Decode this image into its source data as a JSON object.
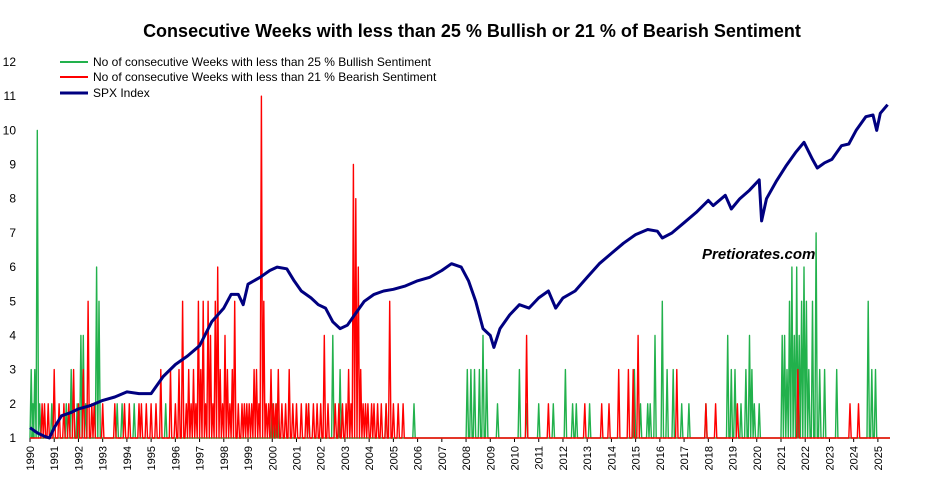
{
  "chart_data": {
    "type": "line",
    "title": "Consecutive Weeks with less than 25 %  Bullish or 21 %  of Bearish Sentiment",
    "watermark": "Pretiorates.com",
    "xlabel": "",
    "ylabel": "",
    "ylim": [
      1,
      12
    ],
    "yticks": [
      1,
      2,
      3,
      4,
      5,
      6,
      7,
      8,
      9,
      10,
      11,
      12
    ],
    "xlim": [
      1990,
      2025.5
    ],
    "xticks": [
      "1990",
      "1991",
      "1992",
      "1993",
      "1994",
      "1995",
      "1996",
      "1997",
      "1998",
      "1999",
      "2000",
      "2001",
      "2002",
      "2003",
      "2004",
      "2005",
      "2006",
      "2007",
      "2008",
      "2009",
      "2010",
      "2011",
      "2012",
      "2013",
      "2014",
      "2015",
      "2016",
      "2017",
      "2018",
      "2019",
      "2020",
      "2021",
      "2022",
      "2023",
      "2024",
      "2025"
    ],
    "legend_position": "top-left",
    "series": [
      {
        "name": "No of consecutive Weeks with less than 25 % Bullish Sentiment",
        "color": "#22b14c",
        "style": "spikes",
        "points": [
          [
            1990.05,
            3
          ],
          [
            1990.12,
            2
          ],
          [
            1990.2,
            3
          ],
          [
            1990.3,
            10
          ],
          [
            1990.4,
            2
          ],
          [
            1990.9,
            2
          ],
          [
            1991.5,
            2
          ],
          [
            1991.7,
            3
          ],
          [
            1991.95,
            2
          ],
          [
            1992.1,
            4
          ],
          [
            1992.2,
            4
          ],
          [
            1992.3,
            2
          ],
          [
            1992.75,
            6
          ],
          [
            1992.85,
            5
          ],
          [
            1993.6,
            2
          ],
          [
            1993.8,
            2
          ],
          [
            1994.3,
            2
          ],
          [
            1995.6,
            2
          ],
          [
            2000.0,
            2
          ],
          [
            2000.2,
            2
          ],
          [
            2001.5,
            2
          ],
          [
            2002.5,
            4
          ],
          [
            2002.8,
            3
          ],
          [
            2004.7,
            2
          ],
          [
            2005.85,
            2
          ],
          [
            2008.05,
            3
          ],
          [
            2008.2,
            3
          ],
          [
            2008.35,
            3
          ],
          [
            2008.55,
            3
          ],
          [
            2008.7,
            4
          ],
          [
            2008.85,
            3
          ],
          [
            2009.3,
            2
          ],
          [
            2010.2,
            3
          ],
          [
            2010.5,
            2
          ],
          [
            2011.0,
            2
          ],
          [
            2011.6,
            2
          ],
          [
            2012.1,
            3
          ],
          [
            2012.4,
            2
          ],
          [
            2012.55,
            2
          ],
          [
            2013.1,
            2
          ],
          [
            2014.95,
            3
          ],
          [
            2015.2,
            2
          ],
          [
            2015.5,
            2
          ],
          [
            2015.6,
            2
          ],
          [
            2015.8,
            4
          ],
          [
            2016.1,
            5
          ],
          [
            2016.3,
            3
          ],
          [
            2016.55,
            3
          ],
          [
            2016.9,
            2
          ],
          [
            2017.2,
            2
          ],
          [
            2017.9,
            2
          ],
          [
            2018.8,
            4
          ],
          [
            2018.95,
            3
          ],
          [
            2019.1,
            3
          ],
          [
            2019.35,
            2
          ],
          [
            2019.55,
            3
          ],
          [
            2019.7,
            4
          ],
          [
            2019.8,
            3
          ],
          [
            2019.9,
            2
          ],
          [
            2020.1,
            2
          ],
          [
            2021.05,
            4
          ],
          [
            2021.15,
            4
          ],
          [
            2021.25,
            3
          ],
          [
            2021.35,
            5
          ],
          [
            2021.45,
            6
          ],
          [
            2021.55,
            4
          ],
          [
            2021.65,
            6
          ],
          [
            2021.75,
            4
          ],
          [
            2021.85,
            5
          ],
          [
            2021.95,
            6
          ],
          [
            2022.05,
            5
          ],
          [
            2022.15,
            3
          ],
          [
            2022.3,
            5
          ],
          [
            2022.45,
            7
          ],
          [
            2022.6,
            3
          ],
          [
            2022.8,
            3
          ],
          [
            2023.3,
            3
          ],
          [
            2024.6,
            5
          ],
          [
            2024.75,
            3
          ],
          [
            2024.9,
            3
          ]
        ]
      },
      {
        "name": "No of consecutive Weeks with less than 21 % Bearish Sentiment",
        "color": "#ff0000",
        "style": "spikes",
        "points": [
          [
            1990.5,
            2
          ],
          [
            1990.6,
            2
          ],
          [
            1990.75,
            2
          ],
          [
            1991.0,
            3
          ],
          [
            1991.2,
            2
          ],
          [
            1991.4,
            2
          ],
          [
            1991.6,
            2
          ],
          [
            1991.8,
            3
          ],
          [
            1992.0,
            2
          ],
          [
            1992.2,
            3
          ],
          [
            1992.4,
            5
          ],
          [
            1992.55,
            2
          ],
          [
            1992.65,
            2
          ],
          [
            1993.0,
            2
          ],
          [
            1993.5,
            2
          ],
          [
            1993.9,
            2
          ],
          [
            1994.1,
            2
          ],
          [
            1994.5,
            2
          ],
          [
            1994.6,
            2
          ],
          [
            1994.8,
            2
          ],
          [
            1995.0,
            2
          ],
          [
            1995.2,
            2
          ],
          [
            1995.4,
            3
          ],
          [
            1995.8,
            3
          ],
          [
            1996.0,
            2
          ],
          [
            1996.15,
            3
          ],
          [
            1996.3,
            5
          ],
          [
            1996.45,
            2
          ],
          [
            1996.55,
            3
          ],
          [
            1996.65,
            2
          ],
          [
            1996.75,
            3
          ],
          [
            1996.85,
            2
          ],
          [
            1996.95,
            5
          ],
          [
            1997.05,
            3
          ],
          [
            1997.15,
            5
          ],
          [
            1997.25,
            2
          ],
          [
            1997.35,
            5
          ],
          [
            1997.45,
            4
          ],
          [
            1997.55,
            2
          ],
          [
            1997.65,
            5
          ],
          [
            1997.75,
            6
          ],
          [
            1997.85,
            3
          ],
          [
            1997.95,
            2
          ],
          [
            1998.05,
            4
          ],
          [
            1998.15,
            3
          ],
          [
            1998.25,
            2
          ],
          [
            1998.35,
            3
          ],
          [
            1998.45,
            5
          ],
          [
            1998.6,
            2
          ],
          [
            1998.75,
            2
          ],
          [
            1998.85,
            2
          ],
          [
            1998.95,
            2
          ],
          [
            1999.05,
            2
          ],
          [
            1999.15,
            2
          ],
          [
            1999.25,
            3
          ],
          [
            1999.35,
            3
          ],
          [
            1999.45,
            2
          ],
          [
            1999.55,
            11
          ],
          [
            1999.65,
            5
          ],
          [
            1999.75,
            2
          ],
          [
            1999.85,
            2
          ],
          [
            1999.95,
            3
          ],
          [
            2000.05,
            2
          ],
          [
            2000.15,
            2
          ],
          [
            2000.25,
            3
          ],
          [
            2000.4,
            2
          ],
          [
            2000.55,
            2
          ],
          [
            2000.7,
            3
          ],
          [
            2000.85,
            2
          ],
          [
            2001.0,
            2
          ],
          [
            2001.2,
            2
          ],
          [
            2001.4,
            2
          ],
          [
            2001.5,
            2
          ],
          [
            2001.7,
            2
          ],
          [
            2001.85,
            2
          ],
          [
            2002.0,
            2
          ],
          [
            2002.15,
            4
          ],
          [
            2002.3,
            2
          ],
          [
            2002.6,
            2
          ],
          [
            2002.75,
            2
          ],
          [
            2002.9,
            2
          ],
          [
            2003.05,
            2
          ],
          [
            2003.15,
            3
          ],
          [
            2003.25,
            2
          ],
          [
            2003.35,
            9
          ],
          [
            2003.45,
            8
          ],
          [
            2003.55,
            6
          ],
          [
            2003.65,
            3
          ],
          [
            2003.75,
            2
          ],
          [
            2003.85,
            2
          ],
          [
            2003.95,
            2
          ],
          [
            2004.1,
            2
          ],
          [
            2004.2,
            2
          ],
          [
            2004.35,
            2
          ],
          [
            2004.5,
            2
          ],
          [
            2004.7,
            2
          ],
          [
            2004.85,
            5
          ],
          [
            2005.0,
            2
          ],
          [
            2005.2,
            2
          ],
          [
            2005.4,
            2
          ],
          [
            2010.5,
            4
          ],
          [
            2011.4,
            2
          ],
          [
            2012.9,
            2
          ],
          [
            2013.6,
            2
          ],
          [
            2013.9,
            2
          ],
          [
            2014.3,
            3
          ],
          [
            2014.7,
            3
          ],
          [
            2014.9,
            3
          ],
          [
            2015.1,
            4
          ],
          [
            2016.7,
            3
          ],
          [
            2017.9,
            2
          ],
          [
            2018.3,
            2
          ],
          [
            2019.2,
            2
          ],
          [
            2021.7,
            3
          ],
          [
            2023.85,
            2
          ],
          [
            2024.2,
            2
          ]
        ]
      },
      {
        "name": "SPX Index",
        "color": "#000080",
        "style": "line",
        "points": [
          [
            1990.0,
            1.3
          ],
          [
            1990.3,
            1.15
          ],
          [
            1990.6,
            1.05
          ],
          [
            1990.8,
            1.0
          ],
          [
            1991.0,
            1.3
          ],
          [
            1991.3,
            1.65
          ],
          [
            1991.7,
            1.75
          ],
          [
            1992.0,
            1.85
          ],
          [
            1992.5,
            1.95
          ],
          [
            1993.0,
            2.1
          ],
          [
            1993.5,
            2.2
          ],
          [
            1994.0,
            2.35
          ],
          [
            1994.5,
            2.3
          ],
          [
            1995.0,
            2.3
          ],
          [
            1995.5,
            2.8
          ],
          [
            1996.0,
            3.15
          ],
          [
            1996.5,
            3.4
          ],
          [
            1997.0,
            3.7
          ],
          [
            1997.5,
            4.4
          ],
          [
            1998.0,
            4.8
          ],
          [
            1998.3,
            5.2
          ],
          [
            1998.6,
            5.2
          ],
          [
            1998.8,
            4.9
          ],
          [
            1999.0,
            5.5
          ],
          [
            1999.5,
            5.7
          ],
          [
            1999.9,
            5.9
          ],
          [
            2000.2,
            6.0
          ],
          [
            2000.6,
            5.95
          ],
          [
            2000.9,
            5.6
          ],
          [
            2001.2,
            5.3
          ],
          [
            2001.6,
            5.1
          ],
          [
            2001.9,
            4.9
          ],
          [
            2002.2,
            4.8
          ],
          [
            2002.5,
            4.4
          ],
          [
            2002.8,
            4.2
          ],
          [
            2003.1,
            4.3
          ],
          [
            2003.4,
            4.6
          ],
          [
            2003.8,
            5.0
          ],
          [
            2004.2,
            5.2
          ],
          [
            2004.6,
            5.3
          ],
          [
            2005.0,
            5.35
          ],
          [
            2005.5,
            5.45
          ],
          [
            2006.0,
            5.6
          ],
          [
            2006.5,
            5.7
          ],
          [
            2007.0,
            5.9
          ],
          [
            2007.4,
            6.1
          ],
          [
            2007.8,
            6.0
          ],
          [
            2008.1,
            5.6
          ],
          [
            2008.4,
            5.0
          ],
          [
            2008.7,
            4.2
          ],
          [
            2009.0,
            4.0
          ],
          [
            2009.15,
            3.65
          ],
          [
            2009.4,
            4.2
          ],
          [
            2009.8,
            4.6
          ],
          [
            2010.2,
            4.9
          ],
          [
            2010.6,
            4.8
          ],
          [
            2011.0,
            5.1
          ],
          [
            2011.4,
            5.3
          ],
          [
            2011.7,
            4.8
          ],
          [
            2012.0,
            5.1
          ],
          [
            2012.5,
            5.3
          ],
          [
            2013.0,
            5.7
          ],
          [
            2013.5,
            6.1
          ],
          [
            2014.0,
            6.4
          ],
          [
            2014.5,
            6.7
          ],
          [
            2015.0,
            6.95
          ],
          [
            2015.5,
            7.1
          ],
          [
            2015.9,
            7.05
          ],
          [
            2016.1,
            6.85
          ],
          [
            2016.5,
            7.0
          ],
          [
            2017.0,
            7.3
          ],
          [
            2017.5,
            7.6
          ],
          [
            2018.0,
            7.95
          ],
          [
            2018.2,
            7.8
          ],
          [
            2018.7,
            8.1
          ],
          [
            2018.95,
            7.7
          ],
          [
            2019.3,
            8.0
          ],
          [
            2019.7,
            8.25
          ],
          [
            2020.1,
            8.55
          ],
          [
            2020.2,
            7.35
          ],
          [
            2020.4,
            8.0
          ],
          [
            2020.8,
            8.5
          ],
          [
            2021.2,
            8.95
          ],
          [
            2021.6,
            9.35
          ],
          [
            2021.95,
            9.65
          ],
          [
            2022.3,
            9.15
          ],
          [
            2022.5,
            8.9
          ],
          [
            2022.8,
            9.05
          ],
          [
            2023.1,
            9.15
          ],
          [
            2023.5,
            9.55
          ],
          [
            2023.8,
            9.6
          ],
          [
            2024.1,
            10.0
          ],
          [
            2024.5,
            10.4
          ],
          [
            2024.8,
            10.45
          ],
          [
            2024.95,
            10.0
          ],
          [
            2025.1,
            10.5
          ],
          [
            2025.4,
            10.75
          ]
        ]
      }
    ]
  }
}
